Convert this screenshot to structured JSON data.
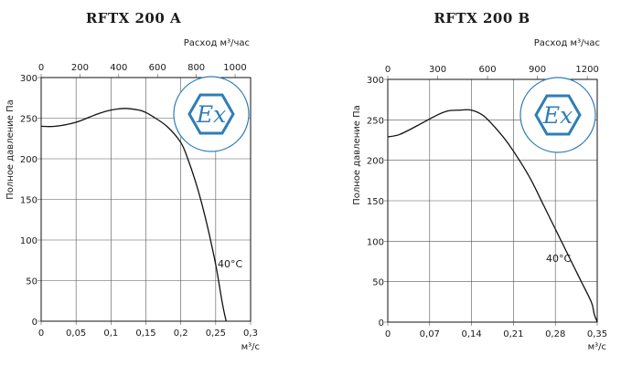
{
  "chart_data": [
    {
      "type": "line",
      "title": "RFTX 200 A",
      "xlabel": "м³/с",
      "ylabel": "Полное давление Па",
      "top_axis_label": "Расход м³/час",
      "xlim": [
        0,
        0.3
      ],
      "ylim": [
        0,
        300
      ],
      "top_xlim": [
        0,
        1080
      ],
      "x_ticks": [
        "0",
        "0,05",
        "0,1",
        "0,15",
        "0,2",
        "0,25",
        "0,3"
      ],
      "y_ticks": [
        "0",
        "50",
        "100",
        "150",
        "200",
        "250",
        "300"
      ],
      "top_ticks": [
        "0",
        "200",
        "400",
        "600",
        "800",
        "1000"
      ],
      "annotation": "40°C",
      "logo": "Ex",
      "grid": true,
      "series": [
        {
          "x": [
            0,
            0.02,
            0.05,
            0.08,
            0.1,
            0.12,
            0.14,
            0.15,
            0.16,
            0.18,
            0.2,
            0.21,
            0.22,
            0.23,
            0.24,
            0.25,
            0.255,
            0.26,
            0.265
          ],
          "y": [
            240,
            240,
            245,
            255,
            260,
            262,
            260,
            257,
            252,
            240,
            220,
            200,
            175,
            145,
            110,
            70,
            45,
            20,
            0
          ]
        }
      ]
    },
    {
      "type": "line",
      "title": "RFTX 200 B",
      "xlabel": "м³/с",
      "ylabel": "Полное давление Па",
      "top_axis_label": "Расход м³/час",
      "xlim": [
        0,
        0.35
      ],
      "ylim": [
        0,
        300
      ],
      "top_xlim": [
        0,
        1260
      ],
      "x_ticks": [
        "0",
        "0,07",
        "0,14",
        "0,21",
        "0,28",
        "0,35"
      ],
      "y_ticks": [
        "0",
        "50",
        "100",
        "150",
        "200",
        "250",
        "300"
      ],
      "top_ticks": [
        "0",
        "300",
        "600",
        "900",
        "1200"
      ],
      "annotation": "40°C",
      "logo": "Ex",
      "grid": true,
      "series": [
        {
          "x": [
            0,
            0.02,
            0.05,
            0.08,
            0.1,
            0.12,
            0.14,
            0.16,
            0.18,
            0.2,
            0.22,
            0.24,
            0.26,
            0.28,
            0.3,
            0.32,
            0.34,
            0.345,
            0.35
          ],
          "y": [
            229,
            232,
            243,
            255,
            261,
            262,
            262,
            255,
            240,
            222,
            200,
            175,
            145,
            115,
            85,
            55,
            25,
            10,
            0
          ]
        }
      ]
    }
  ]
}
